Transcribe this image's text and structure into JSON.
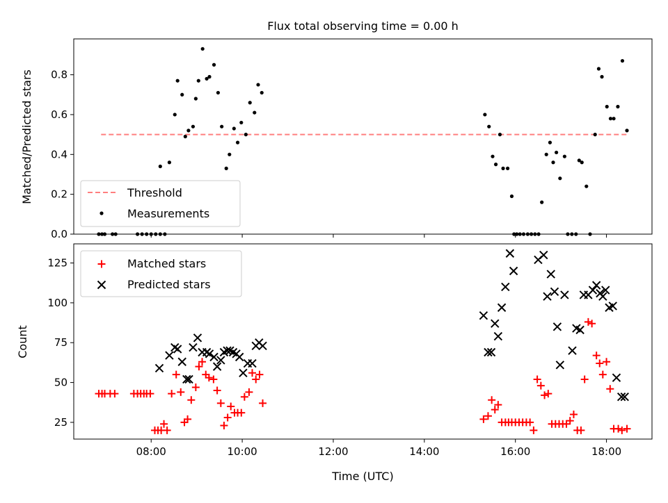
{
  "chart_data": [
    {
      "type": "scatter",
      "title": "Flux total observing time = 0.00 h",
      "xlabel": "",
      "ylabel": "Matched/Predicted stars",
      "xlim": [
        6.3,
        19.0
      ],
      "ylim": [
        0.0,
        0.98
      ],
      "x_ticks": [
        8,
        10,
        12,
        14,
        16,
        18
      ],
      "y_ticks": [
        0.0,
        0.2,
        0.4,
        0.6,
        0.8
      ],
      "y_tick_labels": [
        "0.0",
        "0.2",
        "0.4",
        "0.6",
        "0.8"
      ],
      "threshold": {
        "name": "Threshold",
        "value": 0.5,
        "x_range": [
          6.9,
          18.45
        ],
        "color": "#ff7f7f"
      },
      "legend": {
        "position": "lower-left",
        "entries": [
          "Threshold",
          "Measurements"
        ]
      },
      "series": [
        {
          "name": "Measurements",
          "color": "#000000",
          "marker": "dot",
          "x": [
            6.85,
            6.92,
            6.98,
            7.15,
            7.22,
            7.7,
            7.8,
            7.9,
            8.0,
            8.1,
            8.2,
            8.3,
            8.2,
            8.4,
            8.52,
            8.58,
            8.68,
            8.75,
            8.82,
            8.92,
            8.98,
            9.04,
            9.13,
            9.22,
            9.28,
            9.38,
            9.47,
            9.55,
            9.65,
            9.72,
            9.82,
            9.9,
            9.98,
            10.08,
            10.17,
            10.27,
            10.35,
            10.43,
            15.33,
            15.42,
            15.5,
            15.57,
            15.66,
            15.73,
            15.83,
            15.92,
            15.97,
            16.03,
            16.1,
            16.18,
            16.27,
            16.35,
            16.43,
            16.51,
            16.58,
            16.68,
            16.76,
            16.83,
            16.9,
            16.98,
            17.08,
            17.15,
            17.24,
            17.33,
            17.4,
            17.46,
            17.56,
            17.64,
            17.75,
            17.83,
            17.9,
            18.01,
            18.09,
            18.16,
            18.25,
            18.35,
            18.45
          ],
          "y": [
            0,
            0,
            0,
            0,
            0,
            0,
            0,
            0,
            0,
            0,
            0,
            0,
            0.34,
            0.36,
            0.6,
            0.77,
            0.7,
            0.49,
            0.52,
            0.54,
            0.68,
            0.77,
            0.93,
            0.78,
            0.79,
            0.85,
            0.71,
            0.54,
            0.33,
            0.4,
            0.53,
            0.46,
            0.56,
            0.5,
            0.66,
            0.61,
            0.75,
            0.71,
            0.6,
            0.54,
            0.39,
            0.35,
            0.5,
            0.33,
            0.33,
            0.19,
            0,
            0,
            0,
            0,
            0,
            0,
            0,
            0,
            0.16,
            0.4,
            0.46,
            0.36,
            0.41,
            0.28,
            0.39,
            0,
            0,
            0,
            0.37,
            0.36,
            0.24,
            0,
            0.5,
            0.83,
            0.79,
            0.64,
            0.58,
            0.58,
            0.64,
            0.87,
            0.52
          ]
        }
      ]
    },
    {
      "type": "scatter",
      "title": "",
      "xlabel": "Time (UTC)",
      "ylabel": "Count",
      "xlim": [
        6.3,
        19.0
      ],
      "ylim": [
        14.5,
        137
      ],
      "x_ticks": [
        8,
        10,
        12,
        14,
        16,
        18
      ],
      "x_tick_labels": [
        "08:00",
        "10:00",
        "12:00",
        "14:00",
        "16:00",
        "18:00"
      ],
      "y_ticks": [
        25,
        50,
        75,
        100,
        125
      ],
      "y_tick_labels": [
        "25",
        "50",
        "75",
        "100",
        "125"
      ],
      "legend": {
        "position": "upper-left",
        "entries": [
          "Matched stars",
          "Predicted stars"
        ]
      },
      "series": [
        {
          "name": "Matched stars",
          "color": "#ff0000",
          "marker": "plus",
          "x": [
            6.85,
            6.92,
            6.98,
            7.1,
            7.2,
            7.62,
            7.7,
            7.77,
            7.84,
            7.9,
            7.98,
            8.08,
            8.15,
            8.22,
            8.28,
            8.35,
            8.45,
            8.55,
            8.65,
            8.73,
            8.8,
            8.88,
            8.98,
            9.05,
            9.12,
            9.2,
            9.27,
            9.37,
            9.45,
            9.53,
            9.6,
            9.68,
            9.75,
            9.83,
            9.9,
            9.98,
            10.05,
            10.15,
            10.22,
            10.3,
            10.38,
            10.45,
            15.3,
            15.4,
            15.48,
            15.55,
            15.62,
            15.7,
            15.78,
            15.85,
            15.92,
            16.0,
            16.08,
            16.16,
            16.24,
            16.32,
            16.4,
            16.48,
            16.56,
            16.64,
            16.72,
            16.8,
            16.88,
            16.96,
            17.04,
            17.12,
            17.2,
            17.28,
            17.36,
            17.44,
            17.52,
            17.6,
            17.68,
            17.78,
            17.85,
            17.92,
            18.0,
            18.08,
            18.16,
            18.26,
            18.34,
            18.45
          ],
          "y": [
            43,
            43,
            43,
            43,
            43,
            43,
            43,
            43,
            43,
            43,
            43,
            20,
            20,
            20,
            24,
            20,
            43,
            55,
            44,
            25,
            27,
            39,
            47,
            60,
            63,
            55,
            53,
            52,
            45,
            37,
            23,
            28,
            35,
            31,
            31,
            31,
            41,
            44,
            56,
            52,
            55,
            37,
            27,
            29,
            39,
            33,
            36,
            25,
            25,
            25,
            25,
            25,
            25,
            25,
            25,
            25,
            20,
            52,
            48,
            42,
            43,
            24,
            24,
            24,
            24,
            24,
            26,
            30,
            20,
            20,
            52,
            88,
            87,
            67,
            62,
            55,
            63,
            46,
            21,
            21,
            20,
            21
          ]
        },
        {
          "name": "Predicted stars",
          "color": "#000000",
          "marker": "x",
          "x": [
            8.18,
            8.4,
            8.52,
            8.58,
            8.68,
            8.78,
            8.83,
            8.92,
            9.02,
            9.12,
            9.22,
            9.28,
            9.38,
            9.45,
            9.53,
            9.6,
            9.67,
            9.73,
            9.8,
            9.87,
            9.94,
            10.02,
            10.12,
            10.22,
            10.3,
            10.37,
            10.45,
            15.3,
            15.4,
            15.47,
            15.55,
            15.62,
            15.7,
            15.78,
            15.88,
            15.96,
            16.5,
            16.62,
            16.7,
            16.78,
            16.86,
            16.92,
            16.98,
            17.08,
            17.25,
            17.34,
            17.42,
            17.5,
            17.6,
            17.7,
            17.78,
            17.86,
            17.92,
            17.98,
            18.06,
            18.14,
            18.22,
            18.33,
            18.4
          ],
          "y": [
            59,
            67,
            72,
            71,
            63,
            52,
            52,
            72,
            78,
            69,
            69,
            68,
            66,
            60,
            64,
            69,
            70,
            70,
            69,
            68,
            66,
            56,
            62,
            62,
            73,
            75,
            73,
            92,
            69,
            69,
            87,
            79,
            97,
            110,
            131,
            120,
            127,
            130,
            104,
            118,
            107,
            85,
            61,
            105,
            70,
            84,
            83,
            105,
            105,
            108,
            111,
            106,
            104,
            108,
            97,
            98,
            53,
            41,
            41
          ]
        }
      ]
    }
  ]
}
